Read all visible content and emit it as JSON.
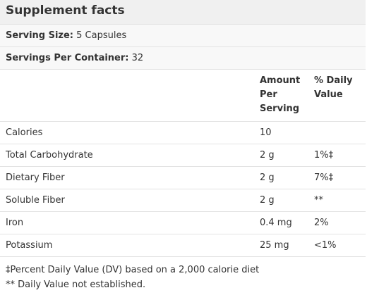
{
  "title": "Supplement facts",
  "serving_size": {
    "label": "Serving Size:",
    "value": "5 Capsules"
  },
  "servings_per_container": {
    "label": "Servings Per Container:",
    "value": "32"
  },
  "columns": {
    "amount_line1": "Amount",
    "amount_line2": "Per",
    "amount_line3": "Serving",
    "dv_line1": "% Daily",
    "dv_line2": "Value"
  },
  "rows": [
    {
      "name": "Calories",
      "amount": "10",
      "dv": ""
    },
    {
      "name": "Total Carbohydrate",
      "amount": "2 g",
      "dv": "1%‡"
    },
    {
      "name": "Dietary Fiber",
      "amount": "2 g",
      "dv": "7%‡"
    },
    {
      "name": "Soluble Fiber",
      "amount": "2 g",
      "dv": "**"
    },
    {
      "name": "Iron",
      "amount": "0.4 mg",
      "dv": "2%"
    },
    {
      "name": "Potassium",
      "amount": "25 mg",
      "dv": "<1%"
    }
  ],
  "footnotes": [
    "‡Percent Daily Value (DV) based on a 2,000 calorie diet",
    "** Daily Value not established."
  ]
}
